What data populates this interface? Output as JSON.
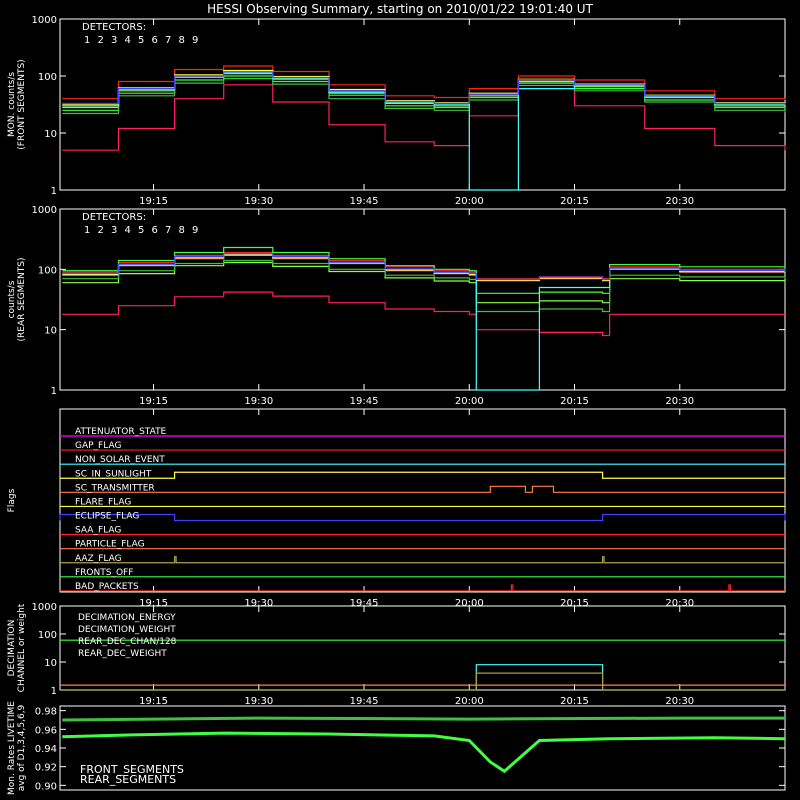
{
  "title": "HESSI Observing Summary, starting on 2010/01/22 19:01:40 UT",
  "colors": {
    "det1": "#ff2020",
    "det2": "#ff2060",
    "det3": "#ff7f3f",
    "det4": "#ffff40",
    "det5": "#90ff40",
    "det6": "#40ff40",
    "det7": "#40c040",
    "det8": "#40ffff",
    "det9": "#4040ff",
    "magenta": "#ff00ff",
    "olive": "#b0a040"
  },
  "chart_data": [
    {
      "type": "line",
      "panel": "front",
      "ylabel": "MON. counts/s\n(FRONT SEGMENTS)",
      "ylog": true,
      "ylim": [
        1,
        1000
      ],
      "yticks": [
        "1",
        "10",
        "100",
        "1000"
      ],
      "xlim": [
        "19:01:40",
        "20:45"
      ],
      "xticks": [
        "19:15",
        "19:30",
        "19:45",
        "20:00",
        "20:15",
        "20:30"
      ],
      "legend_title": "DETECTORS:",
      "legend_labels": [
        "1",
        "2",
        "3",
        "4",
        "5",
        "6",
        "7",
        "8",
        "9"
      ],
      "x": [
        "19:02",
        "19:10",
        "19:18",
        "19:25",
        "19:32",
        "19:40",
        "19:48",
        "19:55",
        "20:00",
        "20:07",
        "20:15",
        "20:25",
        "20:35",
        "20:45"
      ],
      "series": [
        {
          "name": "1",
          "values": [
            40,
            80,
            130,
            150,
            120,
            70,
            45,
            42,
            60,
            100,
            85,
            55,
            40,
            38
          ]
        },
        {
          "name": "2",
          "values": [
            5,
            12,
            40,
            70,
            35,
            14,
            7,
            6,
            20,
            60,
            30,
            12,
            6,
            5
          ]
        },
        {
          "name": "3",
          "values": [
            30,
            60,
            100,
            120,
            95,
            55,
            36,
            33,
            48,
            85,
            70,
            45,
            33,
            30
          ]
        },
        {
          "name": "4",
          "values": [
            32,
            62,
            105,
            125,
            98,
            58,
            37,
            34,
            50,
            88,
            72,
            46,
            34,
            31
          ]
        },
        {
          "name": "5",
          "values": [
            28,
            55,
            95,
            110,
            88,
            50,
            33,
            30,
            45,
            80,
            65,
            42,
            30,
            28
          ]
        },
        {
          "name": "6",
          "values": [
            25,
            50,
            85,
            100,
            80,
            46,
            30,
            28,
            42,
            75,
            60,
            38,
            28,
            26
          ]
        },
        {
          "name": "7",
          "values": [
            22,
            45,
            75,
            90,
            72,
            40,
            27,
            25,
            38,
            68,
            55,
            35,
            25,
            23
          ]
        },
        {
          "name": "8",
          "values": [
            30,
            58,
            100,
            115,
            92,
            52,
            35,
            32,
            1,
            60,
            68,
            44,
            32,
            30
          ]
        },
        {
          "name": "9",
          "values": [
            33,
            60,
            100,
            118,
            94,
            55,
            36,
            33,
            48,
            86,
            70,
            45,
            33,
            31
          ]
        }
      ]
    },
    {
      "type": "line",
      "panel": "rear",
      "ylabel": "counts/s\n(REAR SEGMENTS)",
      "ylog": true,
      "ylim": [
        1,
        1000
      ],
      "yticks": [
        "1",
        "10",
        "100",
        "1000"
      ],
      "xlim": [
        "19:01:40",
        "20:45"
      ],
      "xticks": [
        "19:15",
        "19:30",
        "19:45",
        "20:00",
        "20:15",
        "20:30"
      ],
      "legend_title": "DETECTORS:",
      "legend_labels": [
        "1",
        "2",
        "3",
        "4",
        "5",
        "6",
        "7",
        "8",
        "9"
      ],
      "x": [
        "19:02",
        "19:10",
        "19:18",
        "19:25",
        "19:32",
        "19:40",
        "19:48",
        "19:55",
        "20:00",
        "20:01",
        "20:10",
        "20:19",
        "20:20",
        "20:30",
        "20:45"
      ],
      "series": [
        {
          "name": "1",
          "values": [
            90,
            130,
            170,
            190,
            170,
            140,
            110,
            95,
            90,
            70,
            75,
            70,
            110,
            100,
            95
          ]
        },
        {
          "name": "2",
          "values": [
            18,
            25,
            35,
            42,
            36,
            28,
            22,
            20,
            18,
            10,
            9,
            8,
            18,
            18,
            18
          ]
        },
        {
          "name": "3",
          "values": [
            80,
            115,
            150,
            170,
            150,
            125,
            95,
            85,
            80,
            65,
            70,
            65,
            100,
            90,
            85
          ]
        },
        {
          "name": "4",
          "values": [
            82,
            118,
            155,
            175,
            155,
            128,
            98,
            86,
            82,
            66,
            72,
            66,
            102,
            92,
            86
          ]
        },
        {
          "name": "5",
          "values": [
            60,
            85,
            115,
            130,
            112,
            92,
            72,
            64,
            60,
            28,
            30,
            28,
            70,
            65,
            62
          ]
        },
        {
          "name": "6",
          "values": [
            95,
            140,
            190,
            230,
            190,
            150,
            115,
            100,
            95,
            40,
            42,
            40,
            120,
            110,
            100
          ]
        },
        {
          "name": "7",
          "values": [
            70,
            95,
            125,
            140,
            125,
            100,
            80,
            72,
            68,
            20,
            22,
            20,
            80,
            75,
            70
          ]
        },
        {
          "name": "8",
          "values": [
            85,
            120,
            160,
            180,
            160,
            130,
            100,
            88,
            85,
            1,
            50,
            50,
            105,
            95,
            90
          ]
        },
        {
          "name": "9",
          "values": [
            86,
            122,
            162,
            182,
            162,
            132,
            102,
            90,
            86,
            68,
            74,
            68,
            105,
            96,
            90
          ]
        }
      ]
    },
    {
      "type": "flags",
      "panel": "flags",
      "ylabel": "Flags",
      "xticks": [
        "19:15",
        "19:30",
        "19:45",
        "20:00",
        "20:15",
        "20:30"
      ],
      "flags": [
        {
          "name": "ATTENUATOR_STATE",
          "color": "#ff00ff",
          "on": []
        },
        {
          "name": "GAP_FLAG",
          "color": "#ff2020",
          "on": []
        },
        {
          "name": "NON_SOLAR_EVENT",
          "color": "#40ffff",
          "on": []
        },
        {
          "name": "SC_IN_SUNLIGHT",
          "color": "#ffff40",
          "on": [
            [
              "19:18",
              "20:19"
            ]
          ]
        },
        {
          "name": "SC_TRANSMITTER",
          "color": "#ff7f3f",
          "on": [
            [
              "20:03",
              "20:08"
            ],
            [
              "20:09",
              "20:12"
            ]
          ]
        },
        {
          "name": "FLARE_FLAG",
          "color": "#ffff40",
          "on": []
        },
        {
          "name": "ECLIPSE_FLAG",
          "color": "#4040ff",
          "on": [
            [
              "19:01:40",
              "19:18"
            ],
            [
              "20:19",
              "20:45"
            ]
          ]
        },
        {
          "name": "SAA_FLAG",
          "color": "#ff2020",
          "on": []
        },
        {
          "name": "PARTICLE_FLAG",
          "color": "#ff7f3f",
          "on": []
        },
        {
          "name": "AAZ_FLAG",
          "color": "#b0a040",
          "on": [
            [
              "19:18",
              "19:18"
            ],
            [
              "20:19",
              "20:19"
            ]
          ]
        },
        {
          "name": "FRONTS_OFF",
          "color": "#40ff40",
          "on": []
        },
        {
          "name": "BAD_PACKETS",
          "color": "#ff2020",
          "on": [
            [
              "20:06",
              "20:06"
            ],
            [
              "20:37",
              "20:37"
            ]
          ]
        }
      ]
    },
    {
      "type": "line",
      "panel": "decimation",
      "ylabel": "DECIMATION\nCHANNEL or weight",
      "ylog": true,
      "ylim": [
        1,
        1000
      ],
      "yticks": [
        "1",
        "10",
        "100",
        "1000"
      ],
      "xticks": [
        "19:15",
        "19:30",
        "19:45",
        "20:00",
        "20:15",
        "20:30"
      ],
      "series": [
        {
          "name": "DECIMATION_ENERGY",
          "color": "#40ff40",
          "x": [
            "19:01:40",
            "20:45"
          ],
          "values": [
            60,
            60
          ]
        },
        {
          "name": "DECIMATION_WEIGHT",
          "color": "#ff7f3f",
          "x": [
            "19:01:40",
            "20:45"
          ],
          "values": [
            1.5,
            1.5
          ]
        },
        {
          "name": "REAR_DEC_CHAN/128",
          "color": "#40ffff",
          "x": [
            "19:01:40",
            "20:01",
            "20:01",
            "20:19",
            "20:19",
            "20:45"
          ],
          "values": [
            1,
            1,
            8,
            8,
            1,
            1
          ]
        },
        {
          "name": "REAR_DEC_WEIGHT",
          "color": "#b0a040",
          "x": [
            "19:01:40",
            "20:01",
            "20:01",
            "20:19",
            "20:19",
            "20:45"
          ],
          "values": [
            1,
            1,
            4,
            4,
            1,
            1
          ]
        }
      ]
    },
    {
      "type": "line",
      "panel": "livetime",
      "ylabel": "Mon. Rates LIVETIME\navg of D1,3,4,5,6,9",
      "ylim": [
        0.895,
        0.985
      ],
      "yticks": [
        "0.90",
        "0.92",
        "0.94",
        "0.96",
        "0.98"
      ],
      "xticks": [],
      "series": [
        {
          "name": "FRONT_SEGMENTS",
          "color": "#40ff40",
          "x": [
            "19:02",
            "19:12",
            "19:25",
            "19:40",
            "19:55",
            "20:00",
            "20:03",
            "20:05",
            "20:08",
            "20:10",
            "20:20",
            "20:35",
            "20:45"
          ],
          "values": [
            0.952,
            0.954,
            0.956,
            0.955,
            0.953,
            0.948,
            0.925,
            0.915,
            0.935,
            0.948,
            0.95,
            0.951,
            0.95
          ]
        },
        {
          "name": "REAR_SEGMENTS",
          "color": "#40c040",
          "x": [
            "19:02",
            "19:30",
            "20:00",
            "20:30",
            "20:45"
          ],
          "values": [
            0.97,
            0.972,
            0.971,
            0.972,
            0.972
          ]
        }
      ]
    }
  ]
}
